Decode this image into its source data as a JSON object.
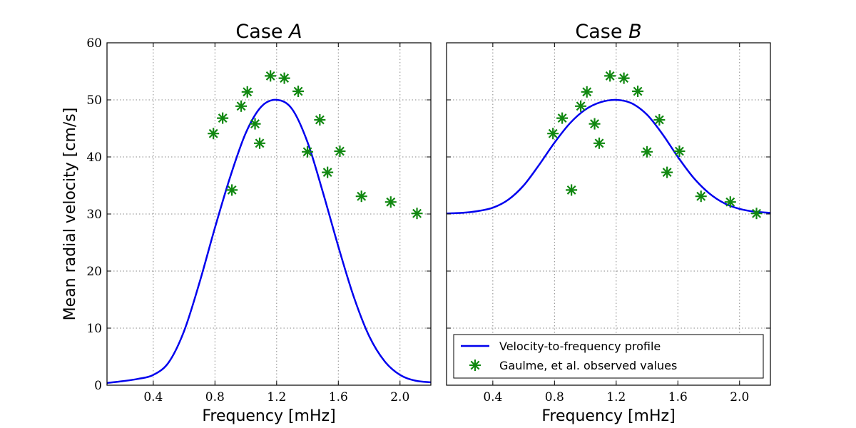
{
  "colors": {
    "curve": "#0000ee",
    "marker": "#118811",
    "grid": "#888888",
    "frame": "#000000"
  },
  "legend": {
    "placement": "lower-right",
    "entries": [
      "Velocity-to-frequency profile",
      "Gaulme, et al. observed values"
    ]
  },
  "chart_data": [
    {
      "type": "line",
      "title_prefix": "Case ",
      "title_var": "A",
      "xlabel": "Frequency [mHz]",
      "ylabel": "Mean radial velocity [cm/s]",
      "xlim": [
        0.1,
        2.2
      ],
      "ylim": [
        0,
        60
      ],
      "xticks": [
        0.4,
        0.8,
        1.2,
        1.6,
        2.0
      ],
      "xtick_labels": [
        "0.4",
        "0.8",
        "1.2",
        "1.6",
        "2.0"
      ],
      "yticks": [
        0,
        10,
        20,
        30,
        40,
        50,
        60
      ],
      "ytick_labels": [
        "0",
        "10",
        "20",
        "30",
        "40",
        "50",
        "60"
      ],
      "grid": true,
      "series": [
        {
          "name": "Velocity-to-frequency profile",
          "kind": "line",
          "x": [
            0.1,
            0.2,
            0.3,
            0.4,
            0.5,
            0.6,
            0.7,
            0.8,
            0.9,
            1.0,
            1.1,
            1.2,
            1.3,
            1.4,
            1.5,
            1.6,
            1.7,
            1.8,
            1.9,
            2.0,
            2.1,
            2.2
          ],
          "y": [
            0.4,
            0.7,
            1.1,
            1.8,
            4.0,
            9.5,
            18.0,
            27.6,
            36.6,
            44.2,
            48.8,
            50.0,
            48.4,
            42.6,
            33.8,
            24.3,
            15.5,
            8.6,
            4.2,
            1.8,
            0.8,
            0.5
          ]
        },
        {
          "name": "Gaulme, et al. observed values",
          "kind": "scatter",
          "x": [
            0.79,
            0.85,
            0.91,
            0.97,
            1.01,
            1.06,
            1.09,
            1.16,
            1.25,
            1.34,
            1.4,
            1.48,
            1.53,
            1.61,
            1.75,
            1.94,
            2.11
          ],
          "y": [
            44.1,
            46.8,
            34.2,
            48.9,
            51.4,
            45.8,
            42.4,
            54.2,
            53.8,
            51.5,
            40.9,
            46.5,
            37.3,
            41.0,
            33.1,
            32.1,
            30.1
          ]
        }
      ]
    },
    {
      "type": "line",
      "title_prefix": "Case ",
      "title_var": "B",
      "xlabel": "Frequency [mHz]",
      "ylabel": "",
      "xlim": [
        0.1,
        2.2
      ],
      "ylim": [
        0,
        60
      ],
      "xticks": [
        0.4,
        0.8,
        1.2,
        1.6,
        2.0
      ],
      "xtick_labels": [
        "0.4",
        "0.8",
        "1.2",
        "1.6",
        "2.0"
      ],
      "yticks": [
        0,
        10,
        20,
        30,
        40,
        50,
        60
      ],
      "ytick_labels": [],
      "grid": true,
      "legend": true,
      "series": [
        {
          "name": "Velocity-to-frequency profile",
          "kind": "line",
          "x": [
            0.1,
            0.2,
            0.3,
            0.4,
            0.5,
            0.6,
            0.7,
            0.8,
            0.9,
            1.0,
            1.1,
            1.2,
            1.3,
            1.4,
            1.5,
            1.6,
            1.7,
            1.8,
            1.9,
            2.0,
            2.1,
            2.2
          ],
          "y": [
            30.1,
            30.2,
            30.5,
            31.1,
            32.5,
            35.0,
            38.6,
            42.5,
            45.9,
            48.3,
            49.6,
            50.0,
            49.4,
            47.4,
            44.0,
            40.0,
            36.4,
            33.7,
            31.9,
            30.9,
            30.4,
            30.2
          ]
        },
        {
          "name": "Gaulme, et al. observed values",
          "kind": "scatter",
          "x": [
            0.79,
            0.85,
            0.91,
            0.97,
            1.01,
            1.06,
            1.09,
            1.16,
            1.25,
            1.34,
            1.4,
            1.48,
            1.53,
            1.61,
            1.75,
            1.94,
            2.11
          ],
          "y": [
            44.1,
            46.8,
            34.2,
            48.9,
            51.4,
            45.8,
            42.4,
            54.2,
            53.8,
            51.5,
            40.9,
            46.5,
            37.3,
            41.0,
            33.1,
            32.1,
            30.1
          ]
        }
      ]
    }
  ]
}
